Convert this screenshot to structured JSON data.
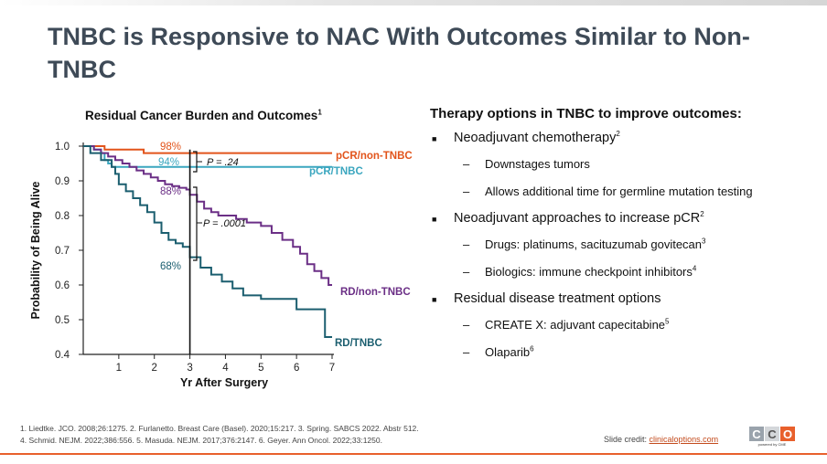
{
  "slide": {
    "title": "TNBC is Responsive to NAC With Outcomes Similar to Non-TNBC"
  },
  "left": {
    "chart_title": "Residual Cancer Burden and Outcomes",
    "chart_title_ref": "1"
  },
  "chart_data": {
    "type": "line",
    "title": "Residual Cancer Burden and Outcomes",
    "xlabel": "Yr After Surgery",
    "ylabel": "Probability of Being Alive",
    "xlim": [
      0,
      7
    ],
    "ylim": [
      0.4,
      1.0
    ],
    "xticks": [
      1,
      2,
      3,
      4,
      5,
      6,
      7
    ],
    "yticks": [
      0.4,
      0.5,
      0.6,
      0.7,
      0.8,
      0.9,
      1.0
    ],
    "yticklabels": [
      "0.4",
      "0.5",
      "0.6",
      "0.7",
      "0.8",
      "0.9",
      "1.0"
    ],
    "grid": false,
    "step": true,
    "series": [
      {
        "name": "pCR/non-TNBC",
        "color": "#e2541b",
        "x": [
          0,
          0.6,
          1.7,
          7.0
        ],
        "y": [
          1.0,
          0.99,
          0.98,
          0.98
        ]
      },
      {
        "name": "pCR/TNBC",
        "color": "#3aa6bf",
        "x": [
          0,
          0.3,
          0.5,
          0.6,
          0.7,
          0.8,
          1.0,
          2.0,
          3.0,
          7.0
        ],
        "y": [
          1.0,
          0.99,
          0.98,
          0.96,
          0.95,
          0.94,
          0.94,
          0.94,
          0.94,
          0.94
        ]
      },
      {
        "name": "RD/non-TNBC",
        "color": "#6b2f86",
        "x": [
          0,
          0.3,
          0.5,
          0.7,
          0.9,
          1.1,
          1.3,
          1.5,
          1.7,
          1.9,
          2.1,
          2.3,
          2.5,
          2.7,
          2.9,
          3.0,
          3.2,
          3.4,
          3.6,
          3.8,
          4.0,
          4.3,
          4.6,
          5.0,
          5.3,
          5.6,
          5.9,
          6.1,
          6.3,
          6.5,
          6.7,
          6.9,
          7.0
        ],
        "y": [
          1.0,
          0.99,
          0.98,
          0.97,
          0.96,
          0.95,
          0.94,
          0.93,
          0.92,
          0.91,
          0.9,
          0.89,
          0.885,
          0.88,
          0.875,
          0.86,
          0.84,
          0.82,
          0.81,
          0.8,
          0.8,
          0.79,
          0.78,
          0.77,
          0.75,
          0.73,
          0.71,
          0.69,
          0.66,
          0.64,
          0.62,
          0.6,
          0.6
        ]
      },
      {
        "name": "RD/TNBC",
        "color": "#1b5e6f",
        "x": [
          0,
          0.2,
          0.5,
          0.8,
          0.9,
          1.0,
          1.2,
          1.4,
          1.6,
          1.8,
          2.0,
          2.2,
          2.4,
          2.6,
          2.8,
          3.0,
          3.3,
          3.6,
          3.9,
          4.2,
          4.5,
          5.0,
          5.5,
          6.0,
          6.5,
          6.8,
          7.0
        ],
        "y": [
          1.0,
          0.98,
          0.96,
          0.94,
          0.92,
          0.89,
          0.87,
          0.85,
          0.83,
          0.81,
          0.78,
          0.75,
          0.73,
          0.72,
          0.71,
          0.68,
          0.65,
          0.63,
          0.61,
          0.59,
          0.57,
          0.56,
          0.56,
          0.53,
          0.53,
          0.45,
          0.45
        ]
      }
    ],
    "annotations": [
      {
        "text": "98%",
        "x": 2.5,
        "y": 0.985
      },
      {
        "text": "94%",
        "x": 2.5,
        "y": 0.945
      },
      {
        "text": "88%",
        "x": 2.5,
        "y": 0.888
      },
      {
        "text": "68%",
        "x": 2.5,
        "y": 0.682
      },
      {
        "text": "P = .24"
      },
      {
        "text": "P = .0001"
      }
    ]
  },
  "right": {
    "heading": "Therapy options in TNBC to improve outcomes:",
    "bullets": [
      {
        "text": "Neoadjuvant chemotherapy",
        "ref": "2"
      },
      {
        "text": "Neoadjuvant approaches to increase pCR",
        "ref": "2"
      },
      {
        "text": "Residual disease treatment options",
        "ref": ""
      }
    ],
    "sub": [
      {
        "text": "Downstages tumors",
        "ref": ""
      },
      {
        "text": "Allows additional time for germline mutation testing",
        "ref": ""
      },
      {
        "text": "Drugs: platinums, sacituzumab govitecan",
        "ref": "3"
      },
      {
        "text": "Biologics: immune checkpoint inhibitors",
        "ref": "4"
      },
      {
        "text": "CREATE X: adjuvant capecitabine",
        "ref": "5"
      },
      {
        "text": "Olaparib",
        "ref": "6"
      }
    ]
  },
  "footer": {
    "line1": "1. Liedtke. JCO. 2008;26:1275.  2. Furlanetto. Breast Care (Basel). 2020;15:217. 3. Spring. SABCS 2022. Abstr 512.",
    "line2": "4. Schmid. NEJM. 2022;386:556.  5. Masuda. NEJM. 2017;376:2147.  6. Geyer. Ann Oncol.  2022;33:1250."
  },
  "credit": {
    "label": "Slide credit:",
    "link": "clinicaloptions.com"
  },
  "logo": {
    "letters": [
      "C",
      "C",
      "O"
    ],
    "sub": "powered by CME"
  },
  "colors": {
    "title": "#3e4a57",
    "accent": "#e8602c"
  }
}
